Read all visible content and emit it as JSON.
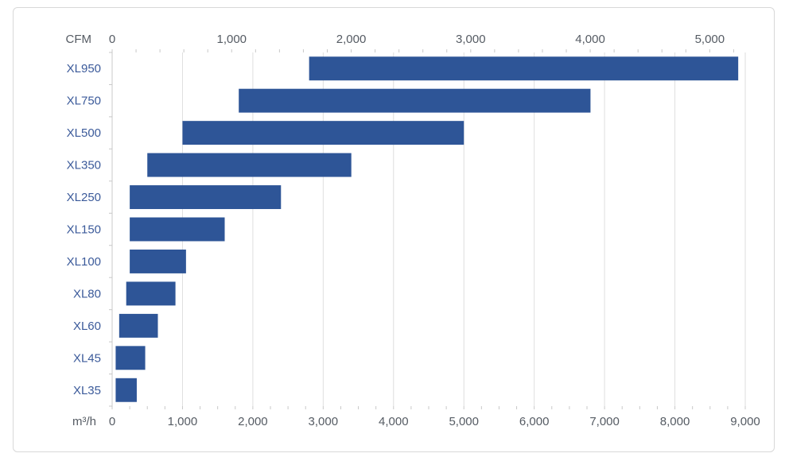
{
  "chart_data": {
    "type": "bar",
    "orientation": "horizontal",
    "title": "",
    "bar_color": "#2e5597",
    "grid": true,
    "categories": [
      "XL950",
      "XL750",
      "XL500",
      "XL350",
      "XL250",
      "XL150",
      "XL100",
      "XL80",
      "XL60",
      "XL45",
      "XL35"
    ],
    "ranges_m3h": [
      [
        2800,
        8900
      ],
      [
        1800,
        6800
      ],
      [
        1000,
        5000
      ],
      [
        500,
        3400
      ],
      [
        250,
        2400
      ],
      [
        250,
        1600
      ],
      [
        250,
        1050
      ],
      [
        200,
        900
      ],
      [
        100,
        650
      ],
      [
        50,
        470
      ],
      [
        50,
        350
      ]
    ],
    "x_bottom": {
      "unit_label": "m³/h",
      "lim": [
        0,
        9000
      ],
      "ticks": [
        0,
        1000,
        2000,
        3000,
        4000,
        5000,
        6000,
        7000,
        8000,
        9000
      ],
      "tick_labels": [
        "0",
        "1,000",
        "2,000",
        "3,000",
        "4,000",
        "5,000",
        "6,000",
        "7,000",
        "8,000",
        "9,000"
      ]
    },
    "x_top": {
      "unit_label": "CFM",
      "ticks": [
        0,
        1000,
        2000,
        3000,
        4000,
        5000
      ],
      "tick_labels": [
        "0",
        "1,000",
        "2,000",
        "3,000",
        "4,000",
        "5,000"
      ]
    }
  }
}
